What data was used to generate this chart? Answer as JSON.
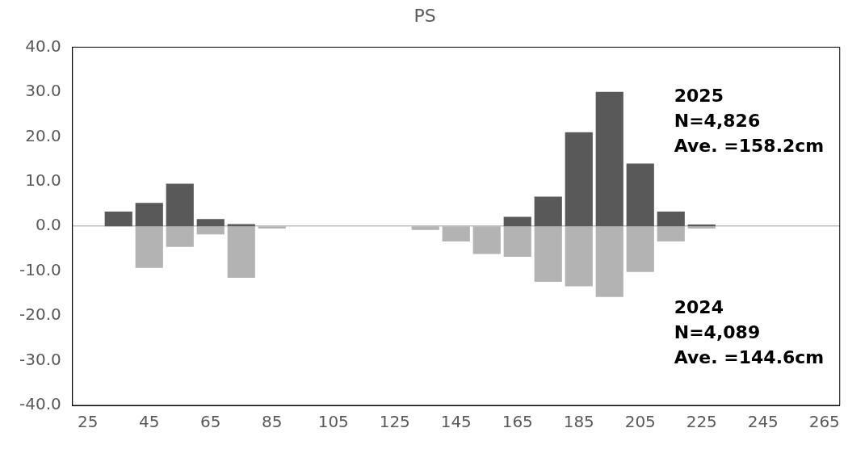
{
  "chart_data": {
    "type": "bar",
    "title": "PS",
    "stacked": true,
    "categories": [
      "25",
      null,
      "45",
      null,
      "65",
      null,
      "85",
      null,
      "105",
      null,
      "125",
      null,
      "145",
      null,
      "165",
      null,
      "185",
      null,
      "205",
      null,
      "225",
      null,
      "245",
      null,
      "265"
    ],
    "series": [
      {
        "name": "2025",
        "color": "#595959",
        "values": [
          null,
          3.3,
          5.2,
          9.5,
          1.6,
          0.5,
          null,
          null,
          null,
          null,
          null,
          null,
          null,
          null,
          2.1,
          6.6,
          21.0,
          30.0,
          14.0,
          3.3,
          0.4,
          null,
          null,
          null,
          null
        ]
      },
      {
        "name": "2024",
        "color": "#b3b3b3",
        "values": [
          null,
          null,
          -9.3,
          -4.6,
          -1.8,
          -11.5,
          -0.5,
          null,
          null,
          null,
          null,
          -0.8,
          -3.4,
          -6.2,
          -6.8,
          -12.4,
          -13.4,
          -15.8,
          -10.2,
          -3.4,
          -0.5,
          null,
          null,
          null,
          null
        ]
      }
    ],
    "ylim": [
      -40,
      40
    ],
    "yticks": [
      {
        "value": -40,
        "label": "-40.0"
      },
      {
        "value": -30,
        "label": "-30.0"
      },
      {
        "value": -20,
        "label": "-20.0"
      },
      {
        "value": -10,
        "label": "-10.0"
      },
      {
        "value": 0,
        "label": "0.0"
      },
      {
        "value": 10,
        "label": "10.0"
      },
      {
        "value": 20,
        "label": "20.0"
      },
      {
        "value": 30,
        "label": "30.0"
      },
      {
        "value": 40,
        "label": "40.0"
      }
    ],
    "annotations": [
      "N=4,826",
      "Ave. =158.2cm",
      "N=4,089",
      "Ave. =144.6cm"
    ],
    "legend": false
  }
}
